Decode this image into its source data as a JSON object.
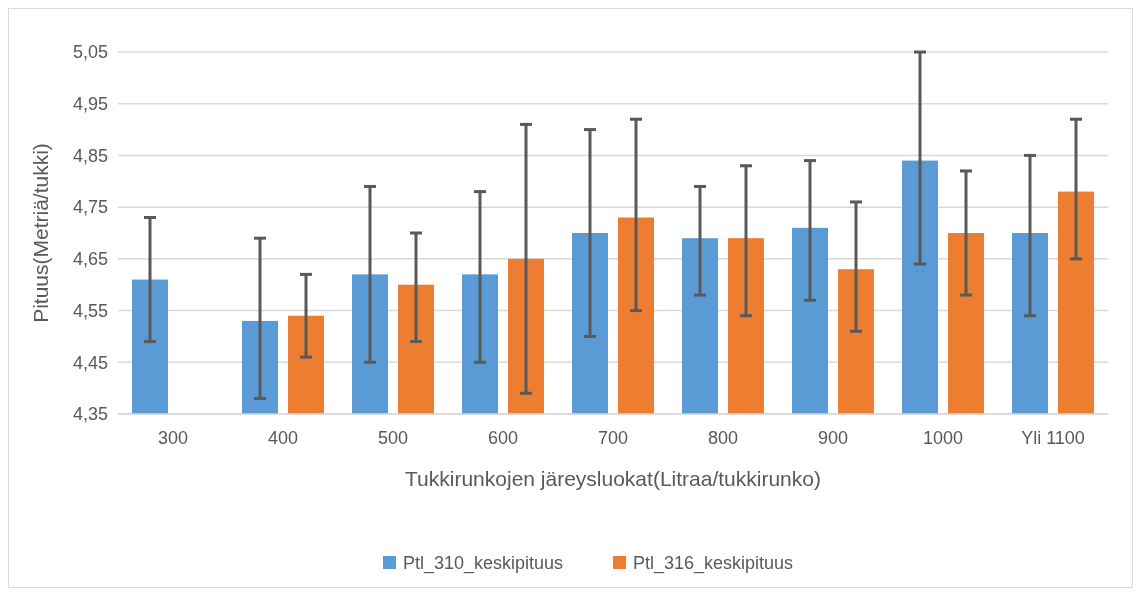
{
  "chart_data": {
    "type": "bar",
    "xlabel": "Tukkirunkojen järeysluokat(Litraa/tukkirunko)",
    "ylabel": "Pituus(Metriä/tukki)",
    "categories": [
      "300",
      "400",
      "500",
      "600",
      "700",
      "800",
      "900",
      "1000",
      "Yli 1100"
    ],
    "series": [
      {
        "name": "Ptl_310_keskipituus",
        "color": "#5b9bd5",
        "values": [
          4.61,
          4.53,
          4.62,
          4.62,
          4.7,
          4.69,
          4.71,
          4.84,
          4.7
        ],
        "errors": [
          [
            4.49,
            4.73
          ],
          [
            4.38,
            4.69
          ],
          [
            4.45,
            4.79
          ],
          [
            4.45,
            4.78
          ],
          [
            4.5,
            4.9
          ],
          [
            4.58,
            4.79
          ],
          [
            4.57,
            4.84
          ],
          [
            4.64,
            5.05
          ],
          [
            4.54,
            4.85
          ]
        ]
      },
      {
        "name": "Ptl_316_keskipituus",
        "color": "#ed7d31",
        "values": [
          null,
          4.54,
          4.6,
          4.65,
          4.73,
          4.69,
          4.63,
          4.7,
          4.78
        ],
        "errors": [
          null,
          [
            4.46,
            4.62
          ],
          [
            4.49,
            4.7
          ],
          [
            4.39,
            4.91
          ],
          [
            4.55,
            4.92
          ],
          [
            4.54,
            4.83
          ],
          [
            4.51,
            4.76
          ],
          [
            4.58,
            4.82
          ],
          [
            4.65,
            4.92
          ]
        ]
      }
    ],
    "ylim": [
      4.35,
      5.05
    ],
    "yticks": [
      {
        "value": 4.35,
        "label": "4,35"
      },
      {
        "value": 4.45,
        "label": "4,45"
      },
      {
        "value": 4.55,
        "label": "4,55"
      },
      {
        "value": 4.65,
        "label": "4,65"
      },
      {
        "value": 4.75,
        "label": "4,75"
      },
      {
        "value": 4.85,
        "label": "4,85"
      },
      {
        "value": 4.95,
        "label": "4,95"
      },
      {
        "value": 5.05,
        "label": "5,05"
      }
    ],
    "grid": "y",
    "legend": "bottom"
  }
}
